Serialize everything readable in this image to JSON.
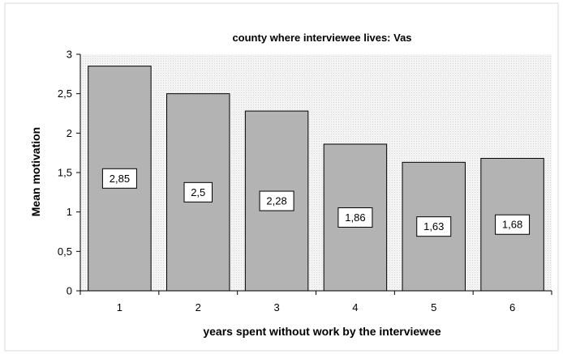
{
  "chart_data": {
    "type": "bar",
    "title": "county where interviewee lives: Vas",
    "xlabel": "years spent without work by the interviewee",
    "ylabel": "Mean motivation",
    "categories": [
      "1",
      "2",
      "3",
      "4",
      "5",
      "6"
    ],
    "values": [
      2.85,
      2.5,
      2.28,
      1.86,
      1.63,
      1.68
    ],
    "value_labels": [
      "2,85",
      "2,5",
      "2,28",
      "1,86",
      "1,63",
      "1,68"
    ],
    "ylim": [
      0,
      3
    ],
    "yticks": [
      0,
      0.5,
      1,
      1.5,
      2,
      2.5,
      3
    ],
    "ytick_labels": [
      "0",
      "0,5",
      "1",
      "1,5",
      "2",
      "2,5",
      "3"
    ],
    "grid": false,
    "legend": "none",
    "colors": {
      "bar_fill": "#b3b3b3",
      "bar_stroke": "#000000",
      "plot_background": "#f0f0f0",
      "outer_border": "#d9d9d9"
    }
  }
}
